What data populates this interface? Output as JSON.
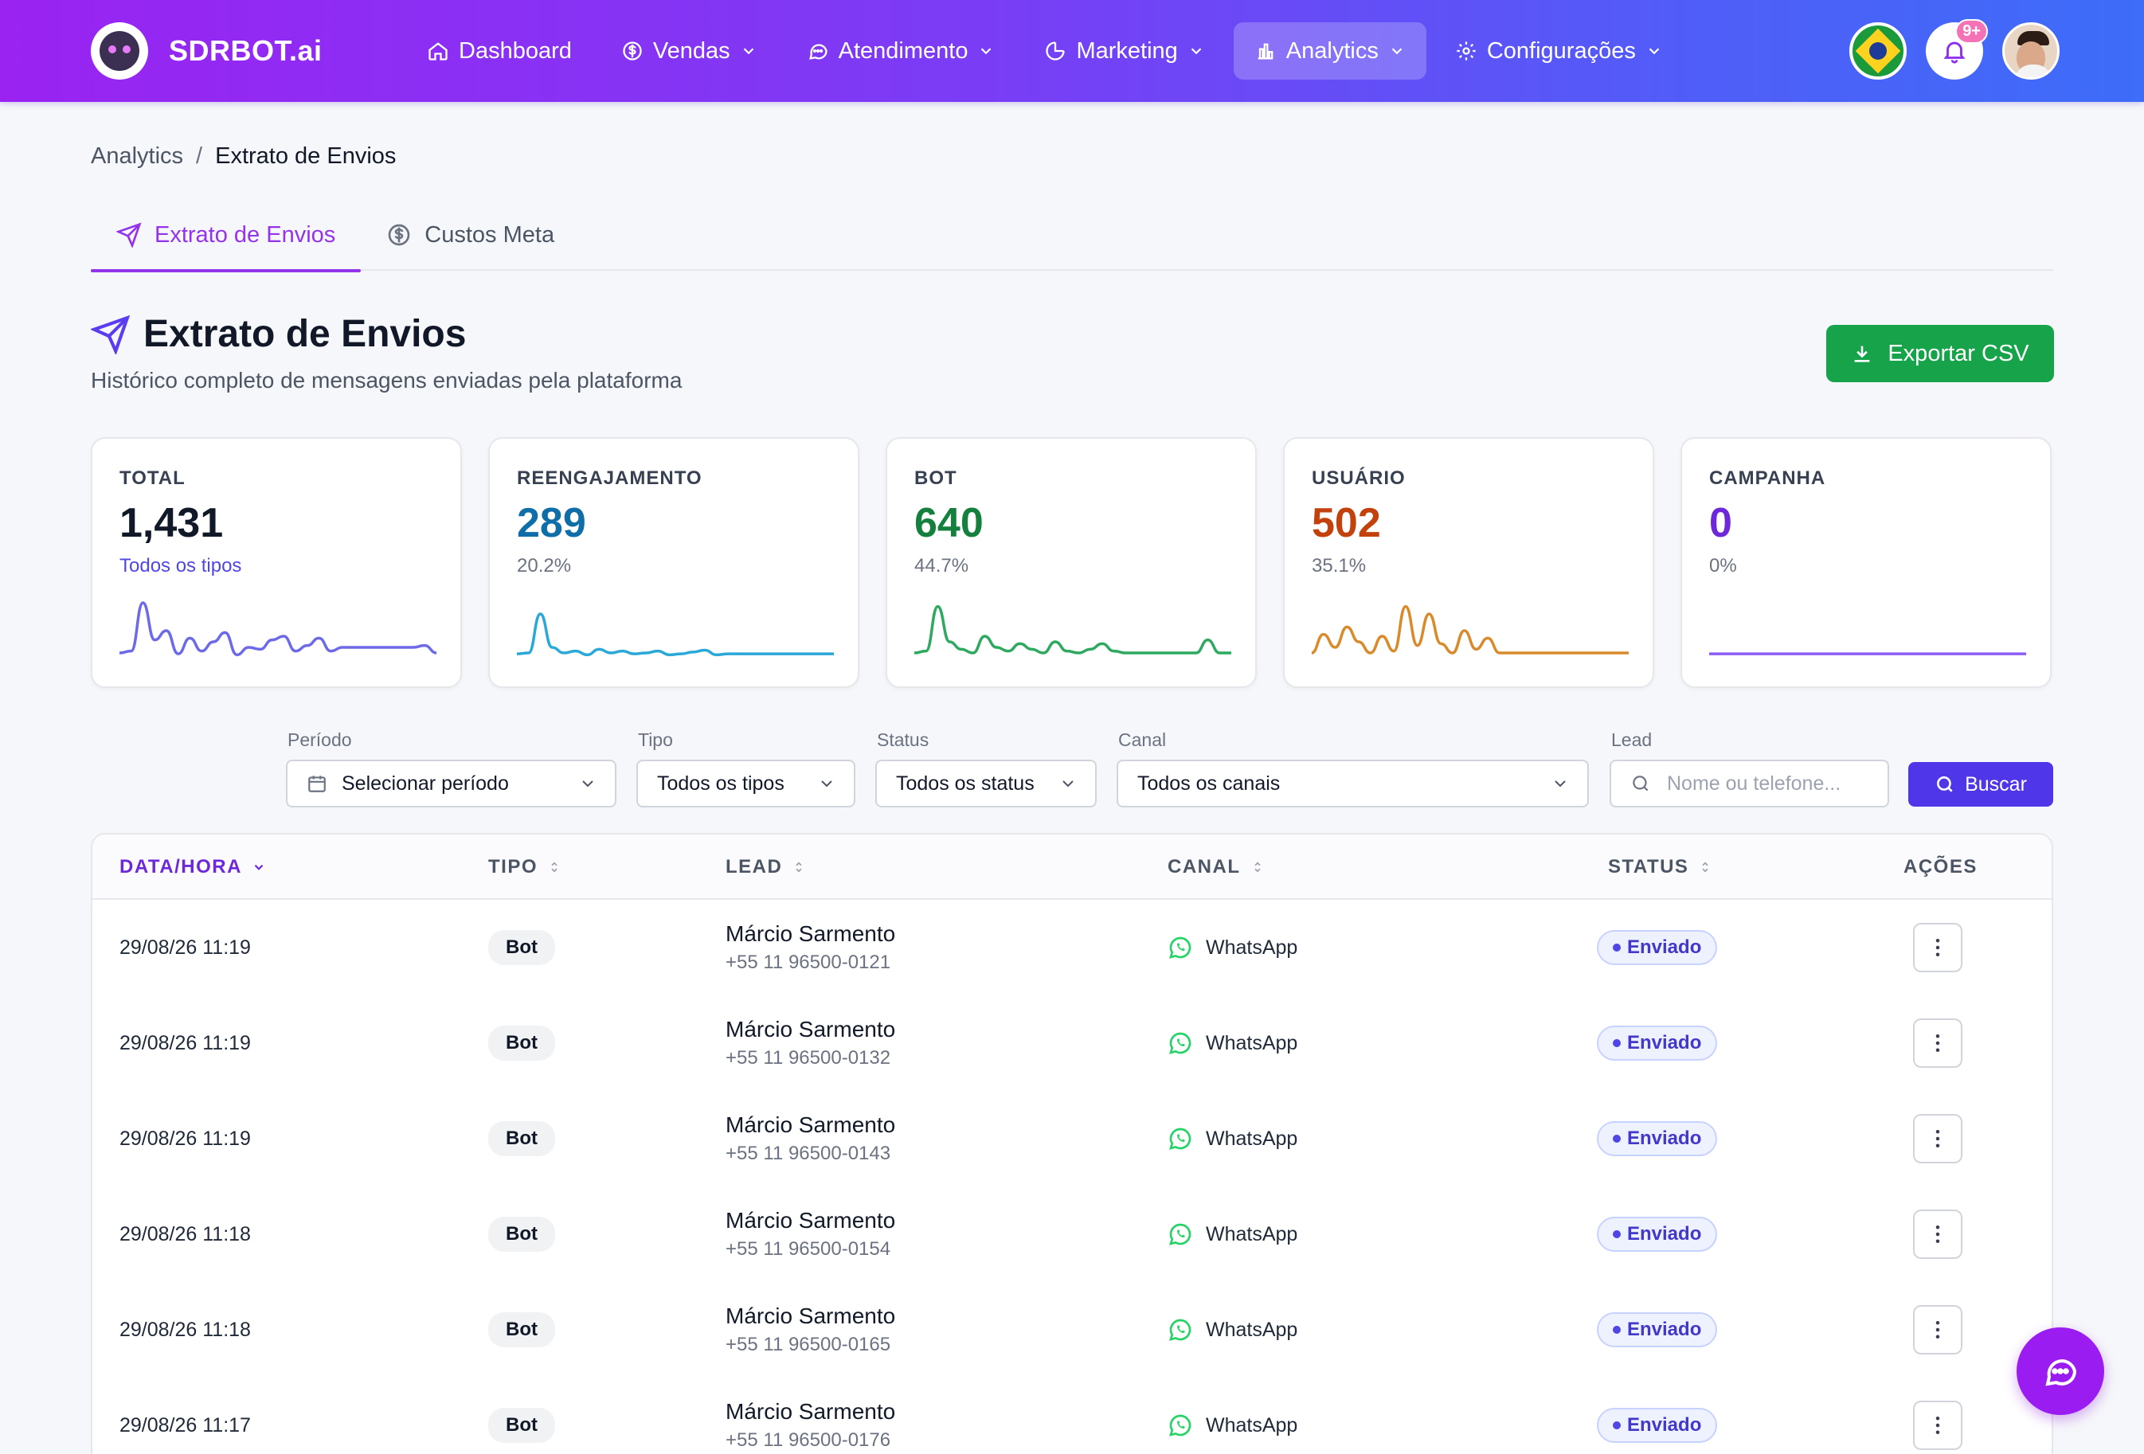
{
  "brand": {
    "name": "SDRBOT.ai"
  },
  "nav": {
    "items": [
      {
        "label": "Dashboard",
        "icon": "home-icon",
        "chevron": false
      },
      {
        "label": "Vendas",
        "icon": "dollar-icon",
        "chevron": true
      },
      {
        "label": "Atendimento",
        "icon": "chat-icon",
        "chevron": true
      },
      {
        "label": "Marketing",
        "icon": "pie-chart-icon",
        "chevron": true
      },
      {
        "label": "Analytics",
        "icon": "bar-chart-icon",
        "chevron": true,
        "active": true
      },
      {
        "label": "Configurações",
        "icon": "gear-icon",
        "chevron": true
      }
    ],
    "notifications_badge": "9+"
  },
  "breadcrumb": {
    "parent": "Analytics",
    "separator": "/",
    "current": "Extrato de Envios"
  },
  "tabs": [
    {
      "label": "Extrato de Envios",
      "icon": "send-icon",
      "active": true
    },
    {
      "label": "Custos Meta",
      "icon": "dollar-circle-icon",
      "active": false
    }
  ],
  "header": {
    "title": "Extrato de Envios",
    "subtitle": "Histórico completo de mensagens enviadas pela plataforma",
    "export_label": "Exportar CSV"
  },
  "cards": [
    {
      "label": "TOTAL",
      "value": "1,431",
      "sub": "Todos os tipos",
      "value_color": "#111827",
      "sub_color": "#4f46e5",
      "line_color": "#6d6ae8",
      "spark": [
        6,
        8,
        60,
        20,
        30,
        5,
        22,
        8,
        18,
        28,
        4,
        12,
        10,
        20,
        24,
        8,
        14,
        22,
        8,
        12,
        12,
        12,
        12,
        12,
        12,
        12,
        14,
        6
      ]
    },
    {
      "label": "REENGAJAMENTO",
      "value": "289",
      "sub": "20.2%",
      "value_color": "#0f6da8",
      "sub_color": "#6b7280",
      "line_color": "#2aa8d8",
      "spark": [
        5,
        6,
        48,
        12,
        6,
        8,
        4,
        10,
        6,
        8,
        5,
        6,
        8,
        4,
        5,
        7,
        9,
        4,
        5,
        5,
        5,
        5,
        5,
        5,
        5,
        5,
        5,
        5
      ]
    },
    {
      "label": "BOT",
      "value": "640",
      "sub": "44.7%",
      "value_color": "#15803d",
      "sub_color": "#6b7280",
      "line_color": "#2fa860",
      "spark": [
        6,
        8,
        56,
        18,
        10,
        6,
        24,
        12,
        8,
        16,
        10,
        6,
        18,
        8,
        6,
        10,
        16,
        8,
        6,
        6,
        6,
        6,
        6,
        6,
        6,
        20,
        6,
        6
      ]
    },
    {
      "label": "USUÁRIO",
      "value": "502",
      "sub": "35.1%",
      "value_color": "#c2410c",
      "sub_color": "#6b7280",
      "line_color": "#d98a2a",
      "spark": [
        6,
        26,
        12,
        34,
        18,
        6,
        24,
        8,
        56,
        14,
        48,
        16,
        6,
        30,
        10,
        22,
        6,
        6,
        6,
        6,
        6,
        6,
        6,
        6,
        6,
        6,
        6,
        6
      ]
    },
    {
      "label": "CAMPANHA",
      "value": "0",
      "sub": "0%",
      "value_color": "#6d28d9",
      "sub_color": "#6b7280",
      "line_color": "#8b5cf6",
      "spark": [
        5,
        5,
        5,
        5,
        5,
        5,
        5,
        5,
        5,
        5,
        5,
        5,
        5,
        5,
        5,
        5,
        5,
        5,
        5,
        5,
        5,
        5,
        5,
        5,
        5,
        5,
        5,
        5
      ]
    }
  ],
  "filters": {
    "periodo": {
      "label": "Período",
      "value": "Selecionar período"
    },
    "tipo": {
      "label": "Tipo",
      "value": "Todos os tipos"
    },
    "status": {
      "label": "Status",
      "value": "Todos os status"
    },
    "canal": {
      "label": "Canal",
      "value": "Todos os canais"
    },
    "lead": {
      "label": "Lead",
      "placeholder": "Nome ou telefone..."
    },
    "search_label": "Buscar"
  },
  "table": {
    "columns": {
      "data": "DATA/HORA",
      "tipo": "TIPO",
      "lead": "LEAD",
      "canal": "CANAL",
      "status": "STATUS",
      "acoes": "AÇÕES"
    },
    "rows": [
      {
        "datetime": "29/08/26 11:19",
        "tipo": "Bot",
        "name": "Márcio Sarmento",
        "phone": "+55 11 96500-0121",
        "canal": "WhatsApp",
        "status": "Enviado"
      },
      {
        "datetime": "29/08/26 11:19",
        "tipo": "Bot",
        "name": "Márcio Sarmento",
        "phone": "+55 11 96500-0132",
        "canal": "WhatsApp",
        "status": "Enviado"
      },
      {
        "datetime": "29/08/26 11:19",
        "tipo": "Bot",
        "name": "Márcio Sarmento",
        "phone": "+55 11 96500-0143",
        "canal": "WhatsApp",
        "status": "Enviado"
      },
      {
        "datetime": "29/08/26 11:18",
        "tipo": "Bot",
        "name": "Márcio Sarmento",
        "phone": "+55 11 96500-0154",
        "canal": "WhatsApp",
        "status": "Enviado"
      },
      {
        "datetime": "29/08/26 11:18",
        "tipo": "Bot",
        "name": "Márcio Sarmento",
        "phone": "+55 11 96500-0165",
        "canal": "WhatsApp",
        "status": "Enviado"
      },
      {
        "datetime": "29/08/26 11:17",
        "tipo": "Bot",
        "name": "Márcio Sarmento",
        "phone": "+55 11 96500-0176",
        "canal": "WhatsApp",
        "status": "Enviado"
      }
    ]
  },
  "colors": {
    "accent": "#9333ea",
    "export": "#16a34a",
    "search": "#4f36e8",
    "whatsapp": "#25d366"
  }
}
